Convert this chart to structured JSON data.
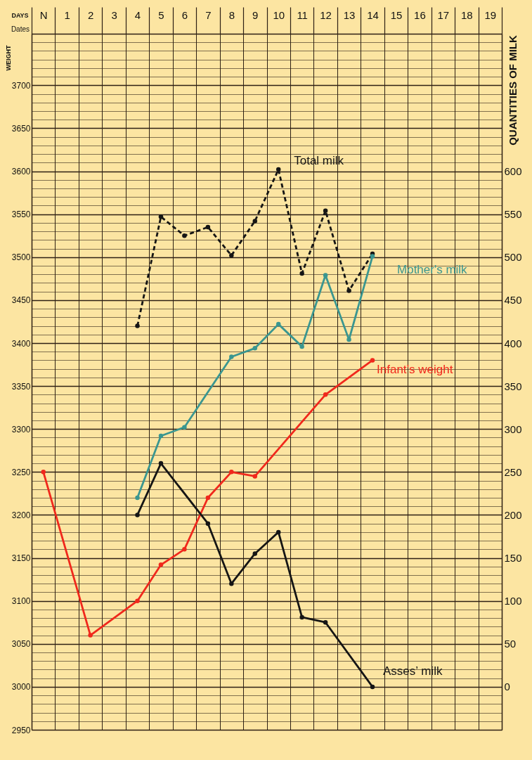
{
  "chart_data": {
    "type": "line",
    "xlabel": "DAYS",
    "ylabel": "WEIGHT",
    "y2label": "QUANTITIES OF MILK",
    "annotations": [
      "Dates"
    ],
    "xlim": [
      -0.5,
      19.5
    ],
    "xticks": [
      {
        "value": -0.5,
        "label": null
      },
      {
        "value": 0,
        "label": "N"
      },
      {
        "value": 0.5,
        "label": null
      },
      1,
      {
        "value": 1.5,
        "label": null
      },
      2,
      {
        "value": 2.5,
        "label": null
      },
      3,
      {
        "value": 3.5,
        "label": null
      },
      4,
      {
        "value": 4.5,
        "label": null
      },
      5,
      {
        "value": 5.5,
        "label": null
      },
      6,
      {
        "value": 6.5,
        "label": null
      },
      7,
      {
        "value": 7.5,
        "label": null
      },
      8,
      {
        "value": 8.5,
        "label": null
      },
      9,
      {
        "value": 9.5,
        "label": null
      },
      10,
      {
        "value": 10.5,
        "label": null
      },
      11,
      {
        "value": 11.5,
        "label": null
      },
      12,
      {
        "value": 12.5,
        "label": null
      },
      13,
      {
        "value": 13.5,
        "label": null
      },
      14,
      {
        "value": 14.5,
        "label": null
      },
      15,
      {
        "value": 15.5,
        "label": null
      },
      16,
      {
        "value": 16.5,
        "label": null
      },
      17,
      {
        "value": 17.5,
        "label": null
      },
      18,
      {
        "value": 18.5,
        "label": null
      },
      19,
      {
        "value": 19.5,
        "label": null
      }
    ],
    "ylim": [
      2950,
      3760
    ],
    "yticks": [
      2950,
      {
        "value": 2960,
        "label": null
      },
      {
        "value": 2970,
        "label": null
      },
      {
        "value": 2980,
        "label": null
      },
      {
        "value": 2990,
        "label": null
      },
      3000,
      {
        "value": 3010,
        "label": null
      },
      {
        "value": 3020,
        "label": null
      },
      {
        "value": 3030,
        "label": null
      },
      {
        "value": 3040,
        "label": null
      },
      3050,
      {
        "value": 3060,
        "label": null
      },
      {
        "value": 3070,
        "label": null
      },
      {
        "value": 3080,
        "label": null
      },
      {
        "value": 3090,
        "label": null
      },
      3100,
      {
        "value": 3110,
        "label": null
      },
      {
        "value": 3120,
        "label": null
      },
      {
        "value": 3130,
        "label": null
      },
      {
        "value": 3140,
        "label": null
      },
      3150,
      {
        "value": 3160,
        "label": null
      },
      {
        "value": 3170,
        "label": null
      },
      {
        "value": 3180,
        "label": null
      },
      {
        "value": 3190,
        "label": null
      },
      3200,
      {
        "value": 3210,
        "label": null
      },
      {
        "value": 3220,
        "label": null
      },
      {
        "value": 3230,
        "label": null
      },
      {
        "value": 3240,
        "label": null
      },
      3250,
      {
        "value": 3260,
        "label": null
      },
      {
        "value": 3270,
        "label": null
      },
      {
        "value": 3280,
        "label": null
      },
      {
        "value": 3290,
        "label": null
      },
      3300,
      {
        "value": 3310,
        "label": null
      },
      {
        "value": 3320,
        "label": null
      },
      {
        "value": 3330,
        "label": null
      },
      {
        "value": 3340,
        "label": null
      },
      3350,
      {
        "value": 3360,
        "label": null
      },
      {
        "value": 3370,
        "label": null
      },
      {
        "value": 3380,
        "label": null
      },
      {
        "value": 3390,
        "label": null
      },
      3400,
      {
        "value": 3410,
        "label": null
      },
      {
        "value": 3420,
        "label": null
      },
      {
        "value": 3430,
        "label": null
      },
      {
        "value": 3440,
        "label": null
      },
      3450,
      {
        "value": 3460,
        "label": null
      },
      {
        "value": 3470,
        "label": null
      },
      {
        "value": 3480,
        "label": null
      },
      {
        "value": 3490,
        "label": null
      },
      3500,
      {
        "value": 3510,
        "label": null
      },
      {
        "value": 3520,
        "label": null
      },
      {
        "value": 3530,
        "label": null
      },
      {
        "value": 3540,
        "label": null
      },
      3550,
      {
        "value": 3560,
        "label": null
      },
      {
        "value": 3570,
        "label": null
      },
      {
        "value": 3580,
        "label": null
      },
      {
        "value": 3590,
        "label": null
      },
      3600,
      {
        "value": 3610,
        "label": null
      },
      {
        "value": 3620,
        "label": null
      },
      {
        "value": 3630,
        "label": null
      },
      {
        "value": 3640,
        "label": null
      },
      3650,
      {
        "value": 3660,
        "label": null
      },
      {
        "value": 3670,
        "label": null
      },
      {
        "value": 3680,
        "label": null
      },
      {
        "value": 3690,
        "label": null
      },
      3700,
      {
        "value": 3710,
        "label": null
      },
      {
        "value": 3720,
        "label": null
      },
      {
        "value": 3730,
        "label": null
      },
      {
        "value": 3740,
        "label": null
      },
      {
        "value": 3750,
        "label": null
      },
      {
        "value": 3760,
        "label": null
      }
    ],
    "y2lim": [
      -50,
      760
    ],
    "y2ticks": [
      0,
      50,
      100,
      150,
      200,
      250,
      300,
      350,
      400,
      450,
      500,
      550,
      600
    ],
    "grid": true,
    "marker": "circle",
    "line_style": "solid",
    "series": [
      {
        "name": "Total milk",
        "color": "#151515",
        "axis": "y2",
        "line_style": "dashed",
        "x": [
          4,
          5,
          6,
          7,
          8,
          9,
          10,
          11,
          12,
          13,
          14
        ],
        "values": [
          420,
          547,
          525,
          535,
          502,
          542,
          602,
          481,
          554,
          461,
          504
        ]
      },
      {
        "name": "Mother's milk",
        "color": "#3a9690",
        "axis": "y2",
        "x": [
          4,
          5,
          6,
          8,
          9,
          10,
          11,
          12,
          13,
          14
        ],
        "values": [
          220,
          292,
          302,
          384,
          394,
          422,
          396,
          479,
          404,
          501
        ]
      },
      {
        "name": "Infant’s weight",
        "color": "#f0281c",
        "x": [
          0,
          2,
          4,
          5,
          6,
          7,
          8,
          9,
          12,
          14
        ],
        "values": [
          3250,
          3060,
          3100,
          3142,
          3160,
          3220,
          3250,
          3245,
          3340,
          3380
        ]
      },
      {
        "name": "Asses’ milk",
        "color": "#151515",
        "axis": "y2",
        "x": [
          4,
          5,
          7,
          8,
          9,
          10,
          11,
          12,
          14
        ],
        "values": [
          200,
          260,
          190,
          120,
          155,
          180,
          81,
          75,
          0
        ]
      }
    ]
  }
}
